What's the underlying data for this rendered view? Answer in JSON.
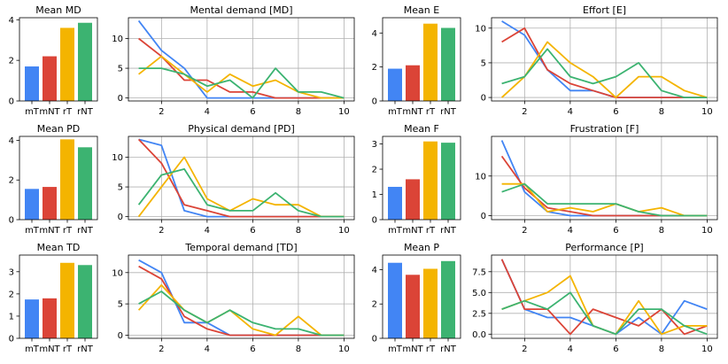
{
  "colors": {
    "mT": "#4285f4",
    "mNT": "#db4437",
    "rT": "#f4b400",
    "rNT": "#3cb371"
  },
  "chart_data": [
    {
      "id": "mean-md",
      "type": "bar",
      "title": "Mean MD",
      "categories": [
        "mT",
        "mNT",
        "rT",
        "rNT"
      ],
      "values": [
        1.7,
        2.2,
        3.6,
        3.85
      ],
      "ylim": [
        0,
        4.1
      ],
      "yticks": [
        0,
        2,
        4
      ]
    },
    {
      "id": "mental-demand",
      "type": "line",
      "title": "Mental demand [MD]",
      "x": [
        1,
        2,
        3,
        4,
        5,
        6,
        7,
        8,
        9,
        10
      ],
      "xticks": [
        2,
        4,
        6,
        8,
        10
      ],
      "ylim": [
        -0.5,
        13.5
      ],
      "yticks": [
        0,
        5,
        10
      ],
      "series": [
        {
          "name": "mT",
          "values": [
            13,
            8,
            5,
            0,
            0,
            0,
            0,
            0,
            0,
            0
          ]
        },
        {
          "name": "mNT",
          "values": [
            10,
            7,
            3,
            3,
            1,
            1,
            0,
            0,
            0,
            0
          ]
        },
        {
          "name": "rT",
          "values": [
            4,
            7,
            4,
            1,
            4,
            2,
            3,
            1,
            0,
            0
          ]
        },
        {
          "name": "rNT",
          "values": [
            5,
            5,
            4,
            2,
            3,
            0,
            5,
            1,
            1,
            0
          ]
        }
      ]
    },
    {
      "id": "mean-e",
      "type": "bar",
      "title": "Mean E",
      "categories": [
        "mT",
        "mNT",
        "rT",
        "rNT"
      ],
      "values": [
        1.9,
        2.1,
        4.55,
        4.3
      ],
      "ylim": [
        0,
        4.9
      ],
      "yticks": [
        0,
        2,
        4
      ]
    },
    {
      "id": "effort",
      "type": "line",
      "title": "Effort [E]",
      "x": [
        1,
        2,
        3,
        4,
        5,
        6,
        7,
        8,
        9,
        10
      ],
      "xticks": [
        2,
        4,
        6,
        8,
        10
      ],
      "ylim": [
        -0.5,
        11.5
      ],
      "yticks": [
        0,
        5,
        10
      ],
      "series": [
        {
          "name": "mT",
          "values": [
            11,
            9,
            4,
            1,
            1,
            0,
            0,
            0,
            0,
            0
          ]
        },
        {
          "name": "mNT",
          "values": [
            8,
            10,
            4,
            2,
            1,
            0,
            0,
            0,
            0,
            0
          ]
        },
        {
          "name": "rT",
          "values": [
            0,
            3,
            8,
            5,
            3,
            0,
            3,
            3,
            1,
            0
          ]
        },
        {
          "name": "rNT",
          "values": [
            2,
            3,
            7,
            3,
            2,
            3,
            5,
            1,
            0,
            0
          ]
        }
      ]
    },
    {
      "id": "mean-pd",
      "type": "bar",
      "title": "Mean PD",
      "categories": [
        "mT",
        "mNT",
        "rT",
        "rNT"
      ],
      "values": [
        1.55,
        1.65,
        4.05,
        3.65
      ],
      "ylim": [
        0,
        4.2
      ],
      "yticks": [
        0,
        2,
        4
      ]
    },
    {
      "id": "physical-demand",
      "type": "line",
      "title": "Physical demand [PD]",
      "x": [
        1,
        2,
        3,
        4,
        5,
        6,
        7,
        8,
        9,
        10
      ],
      "xticks": [
        2,
        4,
        6,
        8,
        10
      ],
      "ylim": [
        -0.5,
        13.5
      ],
      "yticks": [
        0,
        5,
        10
      ],
      "series": [
        {
          "name": "mT",
          "values": [
            13,
            12,
            1,
            0,
            0,
            0,
            0,
            0,
            0,
            0
          ]
        },
        {
          "name": "mNT",
          "values": [
            13,
            9,
            2,
            1,
            0,
            0,
            0,
            0,
            0,
            0
          ]
        },
        {
          "name": "rT",
          "values": [
            0,
            5,
            10,
            3,
            1,
            3,
            2,
            2,
            0,
            0
          ]
        },
        {
          "name": "rNT",
          "values": [
            2,
            7,
            8,
            2,
            1,
            1,
            4,
            1,
            0,
            0
          ]
        }
      ]
    },
    {
      "id": "mean-f",
      "type": "bar",
      "title": "Mean F",
      "categories": [
        "mT",
        "mNT",
        "rT",
        "rNT"
      ],
      "values": [
        1.3,
        1.6,
        3.1,
        3.05
      ],
      "ylim": [
        0,
        3.3
      ],
      "yticks": [
        0,
        1,
        2,
        3
      ]
    },
    {
      "id": "frustration",
      "type": "line",
      "title": "Frustration [F]",
      "x": [
        1,
        2,
        3,
        4,
        5,
        6,
        7,
        8,
        9,
        10
      ],
      "xticks": [
        2,
        4,
        6,
        8,
        10
      ],
      "ylim": [
        -1,
        20
      ],
      "yticks": [
        0,
        10
      ],
      "series": [
        {
          "name": "mT",
          "values": [
            19,
            6,
            1,
            0,
            0,
            0,
            0,
            0,
            0,
            0
          ]
        },
        {
          "name": "mNT",
          "values": [
            15,
            7,
            2,
            1,
            0,
            0,
            0,
            0,
            0,
            0
          ]
        },
        {
          "name": "rT",
          "values": [
            8,
            8,
            1,
            2,
            1,
            3,
            1,
            2,
            0,
            0
          ]
        },
        {
          "name": "rNT",
          "values": [
            6,
            8,
            3,
            3,
            3,
            3,
            1,
            0,
            0,
            0
          ]
        }
      ]
    },
    {
      "id": "mean-td",
      "type": "bar",
      "title": "Mean TD",
      "categories": [
        "mT",
        "mNT",
        "rT",
        "rNT"
      ],
      "values": [
        1.75,
        1.8,
        3.4,
        3.3
      ],
      "ylim": [
        0,
        3.75
      ],
      "yticks": [
        0,
        1,
        2,
        3
      ]
    },
    {
      "id": "temporal-demand",
      "type": "line",
      "title": "Temporal demand [TD]",
      "x": [
        1,
        2,
        3,
        4,
        5,
        6,
        7,
        8,
        9,
        10
      ],
      "xticks": [
        2,
        4,
        6,
        8,
        10
      ],
      "ylim": [
        -0.5,
        12.8
      ],
      "yticks": [
        0,
        5,
        10
      ],
      "series": [
        {
          "name": "mT",
          "values": [
            12,
            10,
            2,
            2,
            0,
            0,
            0,
            0,
            0,
            0
          ]
        },
        {
          "name": "mNT",
          "values": [
            11,
            9,
            3,
            1,
            0,
            0,
            0,
            0,
            0,
            0
          ]
        },
        {
          "name": "rT",
          "values": [
            4,
            8,
            4,
            2,
            4,
            1,
            0,
            3,
            0,
            0
          ]
        },
        {
          "name": "rNT",
          "values": [
            5,
            7,
            4,
            2,
            4,
            2,
            1,
            1,
            0,
            0
          ]
        }
      ]
    },
    {
      "id": "mean-p",
      "type": "bar",
      "title": "Mean P",
      "categories": [
        "mT",
        "mNT",
        "rT",
        "rNT"
      ],
      "values": [
        4.4,
        3.7,
        4.05,
        4.5
      ],
      "ylim": [
        0,
        4.85
      ],
      "yticks": [
        0,
        2,
        4
      ]
    },
    {
      "id": "performance",
      "type": "line",
      "title": "Performance [P]",
      "x": [
        1,
        2,
        3,
        4,
        5,
        6,
        7,
        8,
        9,
        10
      ],
      "xticks": [
        2,
        4,
        6,
        8,
        10
      ],
      "ylim": [
        -0.5,
        9.5
      ],
      "yticks": [
        0.0,
        2.5,
        5.0,
        7.5
      ],
      "tickFormat": "1dp",
      "series": [
        {
          "name": "mT",
          "values": [
            9,
            3,
            2,
            2,
            1,
            0,
            2,
            0,
            4,
            3
          ]
        },
        {
          "name": "mNT",
          "values": [
            9,
            3,
            3,
            0,
            3,
            2,
            1,
            3,
            0,
            1
          ]
        },
        {
          "name": "rT",
          "values": [
            3,
            4,
            5,
            7,
            1,
            0,
            4,
            0,
            1,
            1
          ]
        },
        {
          "name": "rNT",
          "values": [
            3,
            4,
            3,
            5,
            1,
            0,
            3,
            3,
            1,
            0
          ]
        }
      ]
    }
  ]
}
